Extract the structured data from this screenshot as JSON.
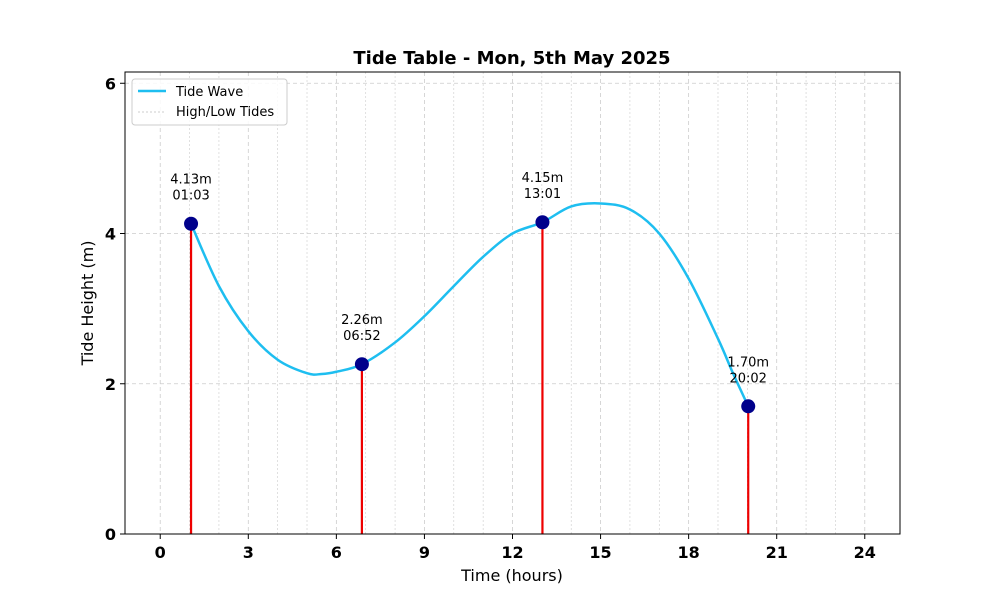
{
  "chart_data": {
    "type": "line",
    "title": "Tide Table - Mon, 5th May 2025",
    "xlabel": "Time (hours)",
    "ylabel": "Tide Height (m)",
    "xlim": [
      -1.2,
      25.2
    ],
    "ylim": [
      0,
      6.15
    ],
    "x_ticks": [
      0,
      3,
      6,
      9,
      12,
      15,
      18,
      21,
      24
    ],
    "y_ticks": [
      0,
      2,
      4,
      6
    ],
    "x_minor_gridlines": [
      1,
      2,
      4,
      5,
      7,
      8,
      10,
      11,
      13,
      14,
      16,
      17,
      19,
      20,
      22,
      23
    ],
    "grid": true,
    "legend": {
      "placement": "top-left",
      "entries": [
        "Tide Wave",
        "High/Low Tides"
      ]
    },
    "series": [
      {
        "name": "Tide Wave",
        "color": "#1ebef0",
        "x": [
          1.05,
          2,
          3,
          4,
          5,
          5.5,
          6,
          6.87,
          8,
          9,
          10,
          11,
          12,
          13.02,
          14,
          15,
          16,
          17,
          18,
          19,
          19.5,
          20.03
        ],
        "y": [
          4.13,
          3.3,
          2.7,
          2.32,
          2.14,
          2.13,
          2.16,
          2.26,
          2.55,
          2.9,
          3.3,
          3.69,
          4.0,
          4.15,
          4.36,
          4.4,
          4.32,
          4.0,
          3.4,
          2.6,
          2.15,
          1.7
        ]
      }
    ],
    "tides": [
      {
        "x": 1.05,
        "height": 4.13,
        "height_label": "4.13m",
        "time_label": "01:03"
      },
      {
        "x": 6.87,
        "height": 2.26,
        "height_label": "2.26m",
        "time_label": "06:52"
      },
      {
        "x": 13.02,
        "height": 4.15,
        "height_label": "4.15m",
        "time_label": "13:01"
      },
      {
        "x": 20.03,
        "height": 1.7,
        "height_label": "1.70m",
        "time_label": "20:02"
      }
    ],
    "colors": {
      "wave": "#1ebef0",
      "stem": "#ee0000",
      "marker": "#00008b",
      "grid": "#cccccc"
    }
  }
}
